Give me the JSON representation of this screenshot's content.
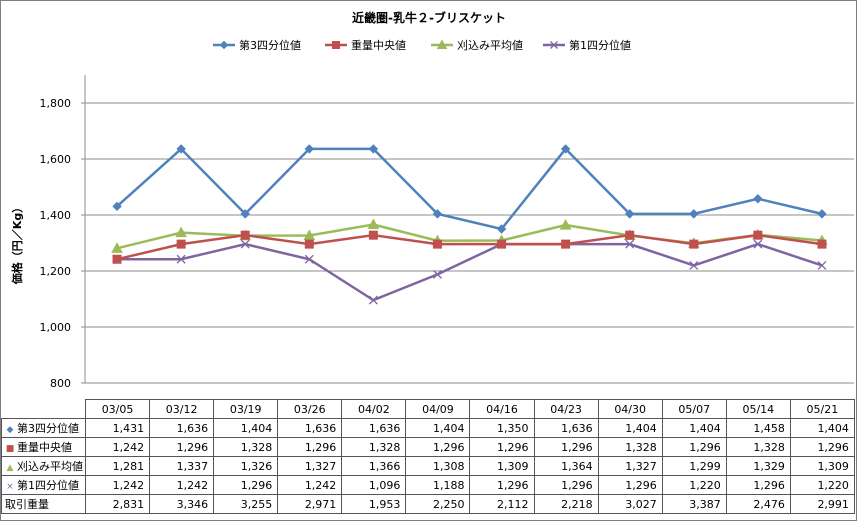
{
  "chart_data": {
    "type": "line",
    "title": "近畿圏-乳牛２-ブリスケット",
    "ylabel": "価格（円／Kg）",
    "xlabel": "",
    "ylim": [
      800,
      1900
    ],
    "yticks": [
      800,
      1000,
      1200,
      1400,
      1600,
      1800
    ],
    "ytick_labels": [
      "800",
      "1,000",
      "1,200",
      "1,400",
      "1,600",
      "1,800"
    ],
    "legend_position": "top",
    "grid": true,
    "categories": [
      "03/05",
      "03/12",
      "03/19",
      "03/26",
      "04/02",
      "04/09",
      "04/16",
      "04/23",
      "04/30",
      "05/07",
      "05/14",
      "05/21"
    ],
    "series": [
      {
        "name": "第3四分位値",
        "color": "#4f81bd",
        "marker": "diamond",
        "values": [
          1431,
          1636,
          1404,
          1636,
          1636,
          1404,
          1350,
          1636,
          1404,
          1404,
          1458,
          1404
        ],
        "labels": [
          "1,431",
          "1,636",
          "1,404",
          "1,636",
          "1,636",
          "1,404",
          "1,350",
          "1,636",
          "1,404",
          "1,404",
          "1,458",
          "1,404"
        ]
      },
      {
        "name": "重量中央値",
        "color": "#c0504d",
        "marker": "square",
        "values": [
          1242,
          1296,
          1328,
          1296,
          1328,
          1296,
          1296,
          1296,
          1328,
          1296,
          1328,
          1296
        ],
        "labels": [
          "1,242",
          "1,296",
          "1,328",
          "1,296",
          "1,328",
          "1,296",
          "1,296",
          "1,296",
          "1,328",
          "1,296",
          "1,328",
          "1,296"
        ]
      },
      {
        "name": "刈込み平均値",
        "color": "#9bbb59",
        "marker": "triangle",
        "values": [
          1281,
          1337,
          1326,
          1327,
          1366,
          1308,
          1309,
          1364,
          1327,
          1299,
          1329,
          1309
        ],
        "labels": [
          "1,281",
          "1,337",
          "1,326",
          "1,327",
          "1,366",
          "1,308",
          "1,309",
          "1,364",
          "1,327",
          "1,299",
          "1,329",
          "1,309"
        ]
      },
      {
        "name": "第1四分位値",
        "color": "#8064a2",
        "marker": "x",
        "values": [
          1242,
          1242,
          1296,
          1242,
          1096,
          1188,
          1296,
          1296,
          1296,
          1220,
          1296,
          1220
        ],
        "labels": [
          "1,242",
          "1,242",
          "1,296",
          "1,242",
          "1,096",
          "1,188",
          "1,296",
          "1,296",
          "1,296",
          "1,220",
          "1,296",
          "1,220"
        ]
      }
    ],
    "table_extra_rows": [
      {
        "name": "取引重量",
        "labels": [
          "2,831",
          "3,346",
          "3,255",
          "2,971",
          "1,953",
          "2,250",
          "2,112",
          "2,218",
          "3,027",
          "3,387",
          "2,476",
          "2,991"
        ]
      }
    ]
  }
}
